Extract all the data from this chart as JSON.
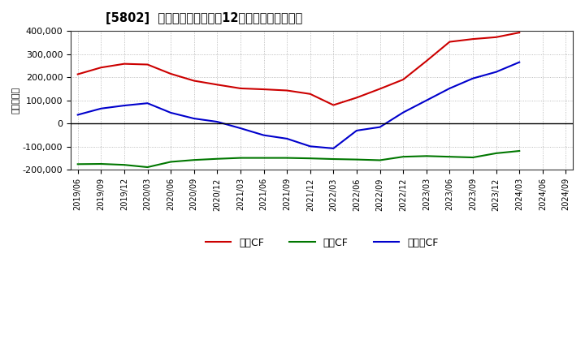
{
  "title": "[5802]  キャッシュフローの12か月移動合計の推移",
  "ylabel": "（百万円）",
  "ylim": [
    -200000,
    400000
  ],
  "yticks": [
    -200000,
    -100000,
    0,
    100000,
    200000,
    300000,
    400000
  ],
  "background_color": "#ffffff",
  "plot_bg_color": "#ffffff",
  "grid_color": "#aaaaaa",
  "legend_labels": [
    "営業CF",
    "投資CF",
    "フリーCF"
  ],
  "line_colors": [
    "#cc0000",
    "#007700",
    "#0000cc"
  ],
  "x_labels": [
    "2019/06",
    "2019/09",
    "2019/12",
    "2020/03",
    "2020/06",
    "2020/09",
    "2020/12",
    "2021/03",
    "2021/06",
    "2021/09",
    "2021/12",
    "2022/03",
    "2022/06",
    "2022/09",
    "2022/12",
    "2023/03",
    "2023/06",
    "2023/09",
    "2023/12",
    "2024/03",
    "2024/06",
    "2024/09"
  ],
  "operating_cf": [
    213000,
    242000,
    258000,
    255000,
    215000,
    185000,
    168000,
    152000,
    148000,
    143000,
    128000,
    80000,
    112000,
    150000,
    190000,
    270000,
    353000,
    365000,
    373000,
    393000,
    null,
    null
  ],
  "investing_cf": [
    -175000,
    -174000,
    -178000,
    -188000,
    -165000,
    -157000,
    -152000,
    -148000,
    -148000,
    -148000,
    -150000,
    -153000,
    -155000,
    -158000,
    -143000,
    -140000,
    -143000,
    -146000,
    -128000,
    -118000,
    null,
    null
  ],
  "free_cf": [
    38000,
    65000,
    78000,
    88000,
    47000,
    22000,
    8000,
    -20000,
    -50000,
    -65000,
    -98000,
    -107000,
    -30000,
    -15000,
    48000,
    100000,
    152000,
    195000,
    223000,
    265000,
    null,
    null
  ]
}
